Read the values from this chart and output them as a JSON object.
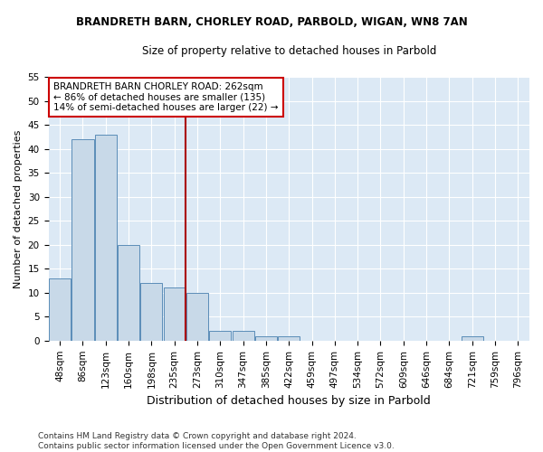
{
  "title": "BRANDRETH BARN, CHORLEY ROAD, PARBOLD, WIGAN, WN8 7AN",
  "subtitle": "Size of property relative to detached houses in Parbold",
  "xlabel": "Distribution of detached houses by size in Parbold",
  "ylabel": "Number of detached properties",
  "categories": [
    "48sqm",
    "86sqm",
    "123sqm",
    "160sqm",
    "198sqm",
    "235sqm",
    "273sqm",
    "310sqm",
    "347sqm",
    "385sqm",
    "422sqm",
    "459sqm",
    "497sqm",
    "534sqm",
    "572sqm",
    "609sqm",
    "646sqm",
    "684sqm",
    "721sqm",
    "759sqm",
    "796sqm"
  ],
  "values": [
    13,
    42,
    43,
    20,
    12,
    11,
    10,
    2,
    2,
    1,
    1,
    0,
    0,
    0,
    0,
    0,
    0,
    0,
    1,
    0,
    0
  ],
  "bar_color": "#c8d9e8",
  "bar_edge_color": "#5b8db8",
  "background_color": "#dce9f5",
  "grid_color": "#ffffff",
  "vline_color": "#aa0000",
  "vline_position": 6.5,
  "annotation_text": "BRANDRETH BARN CHORLEY ROAD: 262sqm\n← 86% of detached houses are smaller (135)\n14% of semi-detached houses are larger (22) →",
  "annotation_box_color": "#ffffff",
  "annotation_box_edge": "#cc0000",
  "ylim": [
    0,
    55
  ],
  "yticks": [
    0,
    5,
    10,
    15,
    20,
    25,
    30,
    35,
    40,
    45,
    50,
    55
  ],
  "footer": "Contains HM Land Registry data © Crown copyright and database right 2024.\nContains public sector information licensed under the Open Government Licence v3.0.",
  "title_fontsize": 8.5,
  "subtitle_fontsize": 8.5,
  "tick_fontsize": 7.5,
  "ylabel_fontsize": 8,
  "xlabel_fontsize": 9,
  "footer_fontsize": 6.5,
  "annotation_fontsize": 7.5,
  "bar_linewidth": 0.7,
  "fig_facecolor": "#ffffff"
}
